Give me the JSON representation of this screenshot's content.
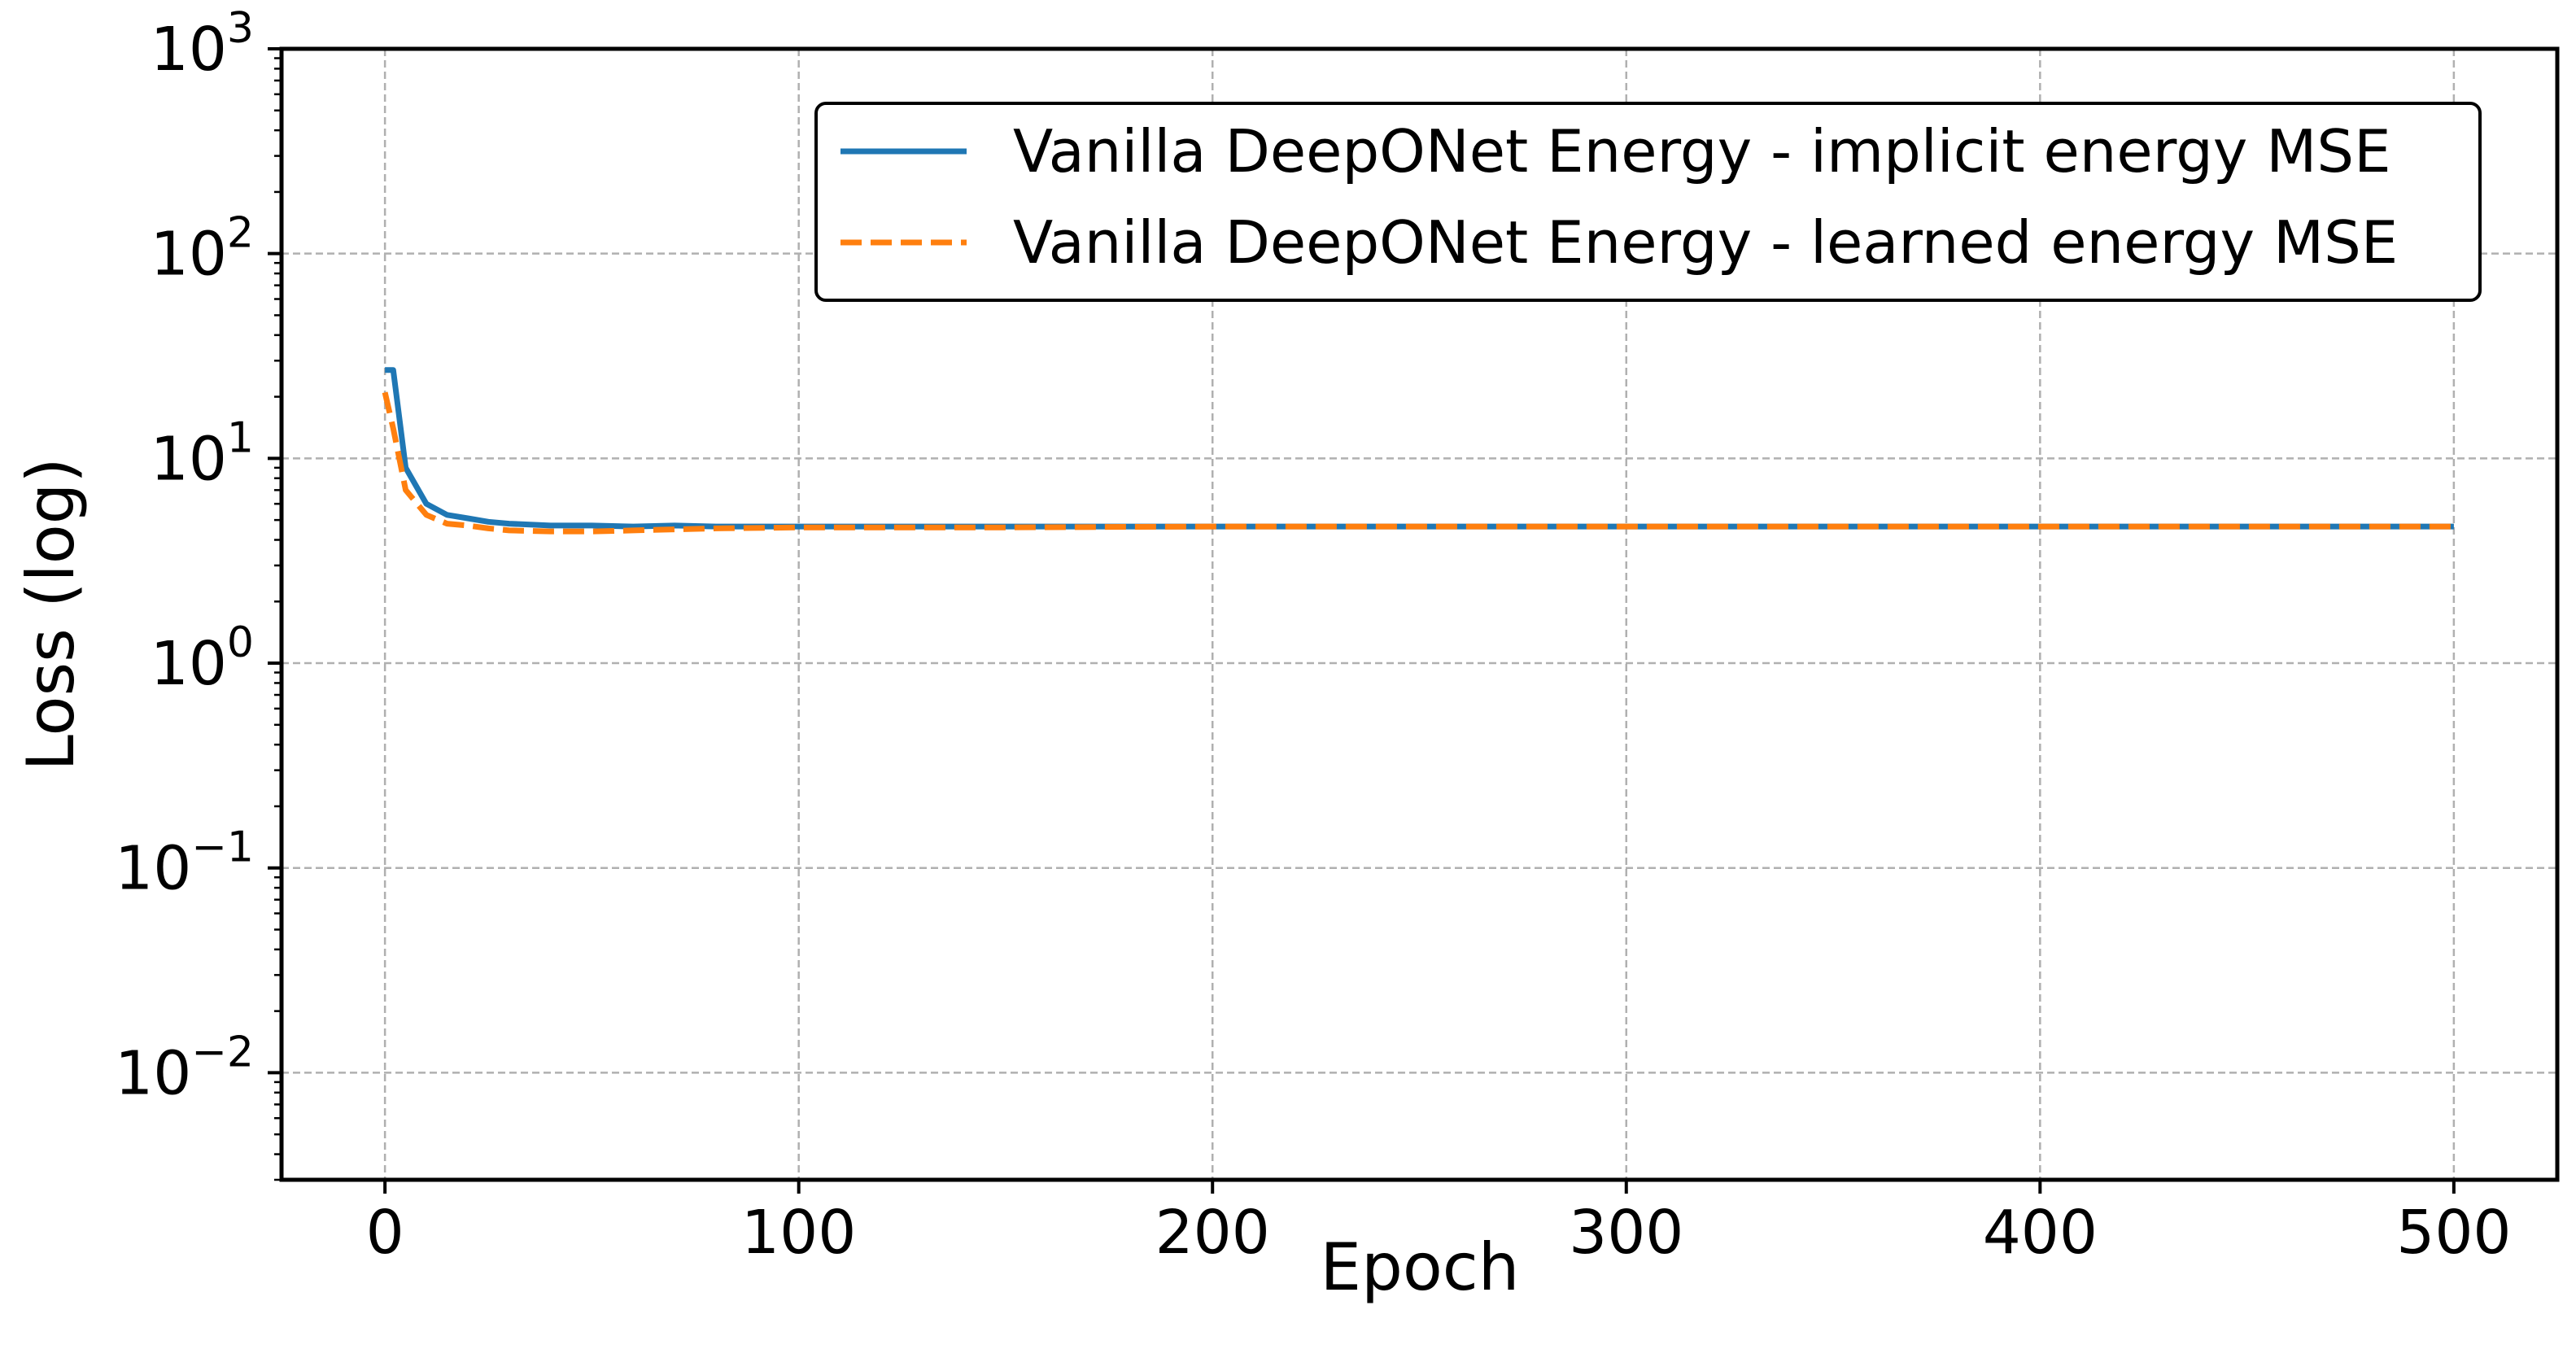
{
  "chart_data": {
    "type": "line",
    "title": "",
    "xlabel": "Epoch",
    "ylabel": "Loss (log)",
    "yscale": "log",
    "xlim": [
      -25,
      525
    ],
    "ylim": [
      0.003,
      1000
    ],
    "xticks": [
      0,
      100,
      200,
      300,
      400,
      500
    ],
    "xtick_labels": [
      "0",
      "100",
      "200",
      "300",
      "400",
      "500"
    ],
    "yticks": [
      0.01,
      0.1,
      1,
      10,
      100,
      1000
    ],
    "ytick_labels": [
      {
        "base": "10",
        "exp": "−2"
      },
      {
        "base": "10",
        "exp": "−1"
      },
      {
        "base": "10",
        "exp": "0"
      },
      {
        "base": "10",
        "exp": "1"
      },
      {
        "base": "10",
        "exp": "2"
      },
      {
        "base": "10",
        "exp": "3"
      }
    ],
    "grid": true,
    "legend_position": "top-right",
    "series": [
      {
        "name": "Vanilla DeepONet Energy - implicit energy MSE",
        "color": "#1f77b4",
        "style": "solid",
        "x": [
          0,
          2,
          5,
          10,
          15,
          20,
          25,
          30,
          40,
          50,
          60,
          70,
          80,
          100,
          150,
          200,
          250,
          300,
          350,
          400,
          450,
          500
        ],
        "y": [
          27,
          27,
          9.0,
          6.0,
          5.3,
          5.1,
          4.9,
          4.8,
          4.7,
          4.7,
          4.65,
          4.7,
          4.65,
          4.65,
          4.65,
          4.65,
          4.65,
          4.65,
          4.65,
          4.65,
          4.65,
          4.65
        ]
      },
      {
        "name": "Vanilla DeepONet Energy - learned energy MSE",
        "color": "#ff7f0e",
        "style": "dashed",
        "x": [
          0,
          2,
          5,
          10,
          15,
          20,
          25,
          30,
          40,
          50,
          60,
          70,
          80,
          100,
          150,
          200,
          250,
          300,
          350,
          400,
          450,
          500
        ],
        "y": [
          21,
          14,
          7.0,
          5.3,
          4.8,
          4.7,
          4.55,
          4.45,
          4.4,
          4.4,
          4.45,
          4.5,
          4.55,
          4.6,
          4.6,
          4.65,
          4.65,
          4.65,
          4.65,
          4.65,
          4.65,
          4.65
        ]
      }
    ]
  }
}
